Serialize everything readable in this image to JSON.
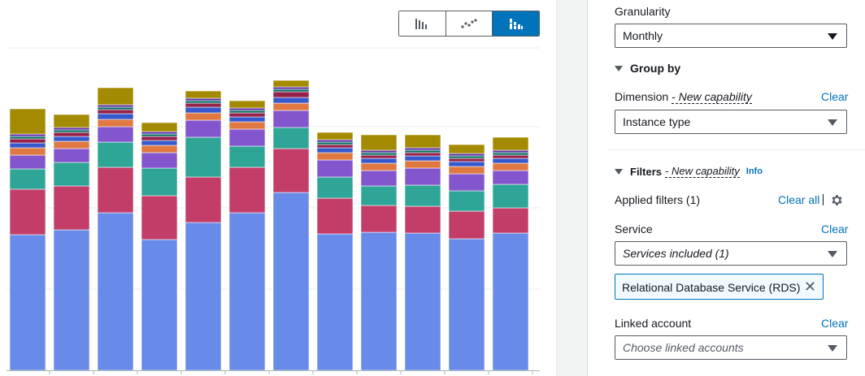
{
  "chart_toggle": {
    "options": [
      {
        "icon": "bar-chart-icon",
        "active": false
      },
      {
        "icon": "line-chart-icon",
        "active": false
      },
      {
        "icon": "stacked-bar-chart-icon",
        "active": true
      }
    ]
  },
  "chart_data": {
    "type": "bar",
    "stacked": true,
    "categories": [
      "",
      "",
      "",
      "",
      "",
      "",
      "",
      "",
      "",
      "",
      "",
      ""
    ],
    "series_colors": [
      "#688ae8",
      "#c33d69",
      "#2ea597",
      "#8456ce",
      "#e07941",
      "#3759ce",
      "#962249",
      "#096f64",
      "#6237a7",
      "#a48a00"
    ],
    "series": [
      {
        "values": [
          167,
          173,
          194,
          161,
          182,
          194,
          219,
          168,
          170,
          169,
          162,
          169
        ]
      },
      {
        "values": [
          56,
          54,
          56,
          54,
          56,
          56,
          54,
          44,
          33,
          33,
          34,
          31
        ]
      },
      {
        "values": [
          25,
          29,
          31,
          34,
          49,
          26,
          26,
          26,
          24,
          26,
          25,
          29
        ]
      },
      {
        "values": [
          17,
          17,
          19,
          19,
          21,
          21,
          21,
          21,
          19,
          21,
          21,
          17
        ]
      },
      {
        "values": [
          9,
          9,
          9,
          9,
          9,
          9,
          9,
          9,
          9,
          9,
          9,
          9
        ]
      },
      {
        "values": [
          6,
          6,
          7,
          6,
          7,
          6,
          7,
          6,
          6,
          6,
          6,
          6
        ]
      },
      {
        "values": [
          5,
          5,
          5,
          5,
          5,
          5,
          7,
          4,
          4,
          4,
          4,
          4
        ]
      },
      {
        "values": [
          3,
          3,
          3,
          3,
          3,
          3,
          3,
          3,
          3,
          3,
          3,
          3
        ]
      },
      {
        "values": [
          3,
          3,
          3,
          3,
          3,
          3,
          3,
          3,
          3,
          3,
          3,
          3
        ]
      },
      {
        "values": [
          31,
          16,
          21,
          11,
          9,
          9,
          8,
          9,
          19,
          16,
          11,
          16
        ]
      }
    ],
    "ylim": [
      0,
      360
    ],
    "grid": true
  },
  "settings": {
    "granularity_label": "Granularity",
    "granularity_value": "Monthly",
    "group_by_label": "Group by",
    "dimension_label": "Dimension",
    "dimension_capability": "- New capability",
    "dimension_clear": "Clear",
    "dimension_value": "Instance type",
    "filters_label": "Filters",
    "filters_capability": "- New capability",
    "filters_info": "Info",
    "applied_filters": "Applied filters (1)",
    "clear_all": "Clear all",
    "service_label": "Service",
    "service_clear": "Clear",
    "service_value": "Services included (1)",
    "service_token": "Relational Database Service (RDS)",
    "linked_account_label": "Linked account",
    "linked_account_clear": "Clear",
    "linked_account_placeholder": "Choose linked accounts"
  }
}
